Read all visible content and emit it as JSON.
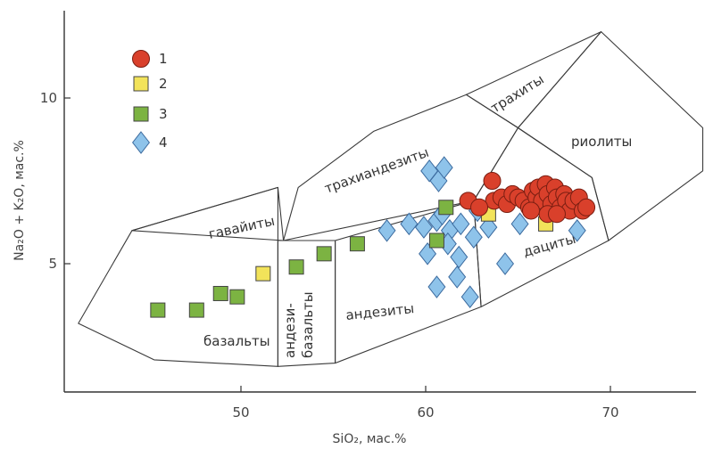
{
  "chart_data": {
    "type": "scatter",
    "title": "",
    "xlabel": "SiO₂, мас.%",
    "ylabel": "Na₂O + K₂O, мас.%",
    "xlim": [
      40.8,
      76
    ],
    "ylim": [
      0.5,
      13
    ],
    "xticks": [
      50,
      60,
      70
    ],
    "yticks": [
      5,
      10
    ],
    "grid": false,
    "legend_position": "top-left",
    "fields": [
      {
        "name": "базальты",
        "polygon": [
          [
            41.2,
            3.2
          ],
          [
            44.1,
            6.0
          ],
          [
            52,
            7.3
          ],
          [
            52,
            1.9
          ],
          [
            45.3,
            2.1
          ]
        ]
      },
      {
        "name": "гавайиты",
        "polygon": [
          [
            44.1,
            6.0
          ],
          [
            52,
            7.3
          ],
          [
            52.3,
            5.7
          ]
        ]
      },
      {
        "name": "андези-базальты",
        "polygon": [
          [
            52,
            1.9
          ],
          [
            52,
            5.7
          ],
          [
            55.1,
            5.7
          ],
          [
            55.1,
            2.0
          ]
        ]
      },
      {
        "name": "андезиты",
        "polygon": [
          [
            55.1,
            2.0
          ],
          [
            55.1,
            5.7
          ],
          [
            62.6,
            6.9
          ],
          [
            63.0,
            3.7
          ]
        ]
      },
      {
        "name": "трахиандезиты",
        "polygon": [
          [
            52.3,
            5.7
          ],
          [
            53.1,
            7.3
          ],
          [
            57.2,
            9.0
          ],
          [
            62.2,
            10.1
          ],
          [
            65.0,
            9.1
          ],
          [
            62.6,
            6.9
          ]
        ]
      },
      {
        "name": "трахиты",
        "polygon": [
          [
            62.2,
            10.1
          ],
          [
            69.5,
            12.0
          ],
          [
            65.0,
            9.1
          ]
        ]
      },
      {
        "name": "дациты",
        "polygon": [
          [
            63.0,
            3.7
          ],
          [
            62.6,
            6.9
          ],
          [
            65.0,
            9.1
          ],
          [
            69.0,
            7.6
          ],
          [
            69.9,
            5.7
          ]
        ]
      },
      {
        "name": "риолиты",
        "polygon": [
          [
            65.0,
            9.1
          ],
          [
            69.5,
            12.0
          ],
          [
            75.0,
            9.1
          ],
          [
            75.0,
            7.8
          ],
          [
            69.9,
            5.7
          ],
          [
            69.0,
            7.6
          ]
        ]
      }
    ],
    "field_labels": {
      "basalts": "базальты",
      "hawaiites": "гавайиты",
      "andesibasalts_1": "андези-",
      "andesibasalts_2": "базальты",
      "andesites": "андезиты",
      "trachyandesites": "трахиандезиты",
      "trachytes": "трахиты",
      "dacites": "дациты",
      "rhyolites": "риолиты"
    },
    "series": [
      {
        "name": "1",
        "marker": "circle",
        "color": "#d9402b",
        "points": [
          [
            63.6,
            7.5
          ],
          [
            63.7,
            6.9
          ],
          [
            64.1,
            7.0
          ],
          [
            64.4,
            6.8
          ],
          [
            64.7,
            7.1
          ],
          [
            65.0,
            7.0
          ],
          [
            65.3,
            6.9
          ],
          [
            65.6,
            6.7
          ],
          [
            65.8,
            7.2
          ],
          [
            66.0,
            7.0
          ],
          [
            66.1,
            7.3
          ],
          [
            66.3,
            6.9
          ],
          [
            66.5,
            7.4
          ],
          [
            66.6,
            7.1
          ],
          [
            66.8,
            6.8
          ],
          [
            67.0,
            7.3
          ],
          [
            67.1,
            7.0
          ],
          [
            67.3,
            6.7
          ],
          [
            67.5,
            7.1
          ],
          [
            67.6,
            6.9
          ],
          [
            67.8,
            6.6
          ],
          [
            68.0,
            6.9
          ],
          [
            68.3,
            7.0
          ],
          [
            68.5,
            6.6
          ],
          [
            68.7,
            6.7
          ],
          [
            62.3,
            6.9
          ],
          [
            62.9,
            6.7
          ],
          [
            66.6,
            6.5
          ],
          [
            65.7,
            6.6
          ],
          [
            67.1,
            6.5
          ]
        ]
      },
      {
        "name": "2",
        "marker": "square",
        "color": "#f2e35a",
        "points": [
          [
            51.2,
            4.7
          ],
          [
            63.4,
            6.5
          ],
          [
            66.5,
            6.2
          ]
        ]
      },
      {
        "name": "3",
        "marker": "square",
        "color": "#7cb342",
        "points": [
          [
            45.5,
            3.6
          ],
          [
            47.6,
            3.6
          ],
          [
            48.9,
            4.1
          ],
          [
            49.8,
            4.0
          ],
          [
            53.0,
            4.9
          ],
          [
            54.5,
            5.3
          ],
          [
            56.3,
            5.6
          ],
          [
            60.6,
            5.7
          ],
          [
            61.1,
            6.7
          ]
        ]
      },
      {
        "name": "4",
        "marker": "diamond",
        "color": "#8ec3ea",
        "points": [
          [
            57.9,
            6.0
          ],
          [
            59.1,
            6.2
          ],
          [
            59.9,
            6.1
          ],
          [
            60.6,
            6.3
          ],
          [
            61.3,
            6.0
          ],
          [
            61.9,
            6.2
          ],
          [
            62.6,
            5.8
          ],
          [
            63.4,
            6.1
          ],
          [
            60.1,
            5.3
          ],
          [
            61.2,
            5.6
          ],
          [
            61.8,
            5.2
          ],
          [
            60.6,
            4.3
          ],
          [
            61.7,
            4.6
          ],
          [
            62.4,
            4.0
          ],
          [
            60.2,
            7.8
          ],
          [
            60.7,
            7.5
          ],
          [
            61.0,
            7.9
          ],
          [
            64.3,
            5.0
          ],
          [
            65.1,
            6.2
          ],
          [
            68.2,
            6.0
          ],
          [
            60.9,
            6.5
          ],
          [
            62.8,
            6.6
          ]
        ]
      }
    ]
  },
  "colors": {
    "circle_fill": "#d9402b",
    "square_yellow": "#f2e35a",
    "square_green": "#7cb342",
    "diamond_blue": "#8ec3ea"
  }
}
